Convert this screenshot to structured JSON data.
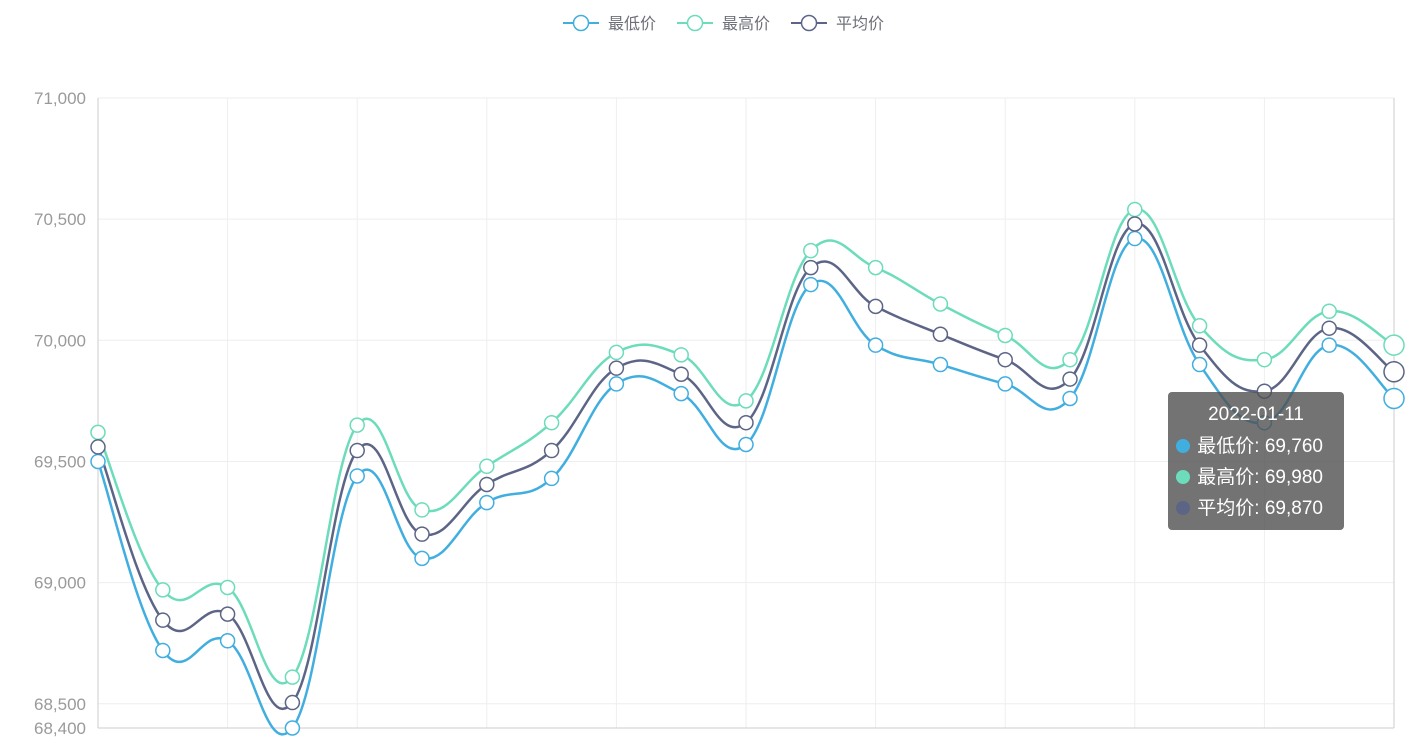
{
  "chart_data": {
    "type": "line",
    "smooth": true,
    "categories": [
      "",
      "",
      "",
      "",
      "",
      "",
      "",
      "",
      "",
      "",
      "",
      "",
      "",
      "",
      "",
      "",
      "",
      "",
      "",
      "",
      ""
    ],
    "series": [
      {
        "name": "最低价",
        "color": "#41aee0",
        "values": [
          69500,
          68720,
          68760,
          68400,
          69440,
          69100,
          69330,
          69430,
          69820,
          69780,
          69570,
          70230,
          69980,
          69900,
          69820,
          69760,
          70420,
          69900,
          69660,
          69980,
          69760
        ]
      },
      {
        "name": "最高价",
        "color": "#6cdcbb",
        "values": [
          69620,
          68970,
          68980,
          68610,
          69650,
          69300,
          69480,
          69660,
          69950,
          69940,
          69750,
          70370,
          70300,
          70150,
          70020,
          69920,
          70540,
          70060,
          69920,
          70120,
          69980
        ]
      },
      {
        "name": "平均价",
        "color": "#5d6587",
        "values": [
          69560,
          68845,
          68870,
          68505,
          69545,
          69200,
          69405,
          69545,
          69885,
          69860,
          69660,
          70300,
          70140,
          70025,
          69920,
          69840,
          70480,
          69980,
          69790,
          70050,
          69870
        ]
      }
    ],
    "ylim": [
      68400,
      71000
    ],
    "y_ticks": [
      "68,400",
      "68,500",
      "69,000",
      "69,500",
      "70,000",
      "70,500",
      "71,000"
    ],
    "y_tick_values": [
      68400,
      68500,
      69000,
      69500,
      70000,
      70500,
      71000
    ],
    "grid": true,
    "legend_position": "top-center"
  },
  "tooltip": {
    "title": "2022-01-11",
    "rows": [
      {
        "label": "最低价: 69,760",
        "color": "#41aee0"
      },
      {
        "label": "最高价: 69,980",
        "color": "#6cdcbb"
      },
      {
        "label": "平均价: 69,870",
        "color": "#5d6587"
      }
    ]
  }
}
